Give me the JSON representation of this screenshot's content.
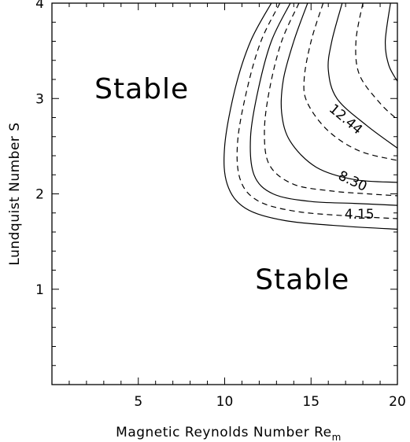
{
  "chart_data": {
    "type": "contour",
    "xlabel": "Magnetic Reynolds Number Re",
    "xlabel_subscript": "m",
    "ylabel": "Lundquist Number S",
    "xlim": [
      0,
      20
    ],
    "ylim": [
      0,
      4
    ],
    "x_ticks": [
      5,
      10,
      15,
      20
    ],
    "y_ticks": [
      1,
      2,
      3,
      4
    ],
    "x_minor_step": 1,
    "y_minor_step": 0.2,
    "grid": false,
    "region_labels": [
      {
        "text": "Stable",
        "x": 5.2,
        "y": 3.1
      },
      {
        "text": "Stable",
        "x": 14.5,
        "y": 1.1
      }
    ],
    "contour_labels": [
      {
        "text": "12.44",
        "x": 17.0,
        "y": 2.78,
        "angle": 40
      },
      {
        "text": "8.30",
        "x": 17.4,
        "y": 2.13,
        "angle": 25
      },
      {
        "text": "4.15",
        "x": 17.8,
        "y": 1.78,
        "angle": 0
      }
    ],
    "contours": [
      {
        "style": "solid",
        "points": [
          [
            12.7,
            4.0
          ],
          [
            11.5,
            3.6
          ],
          [
            10.6,
            3.1
          ],
          [
            10.0,
            2.5
          ],
          [
            10.15,
            2.1
          ],
          [
            11.2,
            1.85
          ],
          [
            13.5,
            1.72
          ],
          [
            17.0,
            1.66
          ],
          [
            20.0,
            1.63
          ]
        ]
      },
      {
        "style": "dashed",
        "points": [
          [
            13.2,
            4.0
          ],
          [
            12.1,
            3.6
          ],
          [
            11.3,
            3.1
          ],
          [
            10.75,
            2.55
          ],
          [
            10.9,
            2.15
          ],
          [
            11.9,
            1.93
          ],
          [
            14.0,
            1.82
          ],
          [
            17.0,
            1.77
          ],
          [
            20.0,
            1.74
          ]
        ]
      },
      {
        "style": "solid",
        "points": [
          [
            13.8,
            4.0
          ],
          [
            12.7,
            3.6
          ],
          [
            11.95,
            3.1
          ],
          [
            11.5,
            2.6
          ],
          [
            11.7,
            2.2
          ],
          [
            12.8,
            2.0
          ],
          [
            15.0,
            1.92
          ],
          [
            17.5,
            1.9
          ],
          [
            20.0,
            1.88
          ]
        ]
      },
      {
        "style": "dashed",
        "points": [
          [
            14.3,
            4.0
          ],
          [
            13.3,
            3.6
          ],
          [
            12.6,
            3.1
          ],
          [
            12.3,
            2.65
          ],
          [
            12.6,
            2.3
          ],
          [
            14.0,
            2.1
          ],
          [
            16.2,
            2.03
          ],
          [
            18.3,
            2.0
          ],
          [
            20.0,
            1.98
          ]
        ]
      },
      {
        "style": "solid",
        "points": [
          [
            14.8,
            4.0
          ],
          [
            14.0,
            3.6
          ],
          [
            13.4,
            3.2
          ],
          [
            13.3,
            2.85
          ],
          [
            13.8,
            2.55
          ],
          [
            15.3,
            2.28
          ],
          [
            17.5,
            2.15
          ],
          [
            20.0,
            2.12
          ]
        ]
      },
      {
        "style": "dashed",
        "points": [
          [
            15.7,
            4.0
          ],
          [
            15.0,
            3.6
          ],
          [
            14.6,
            3.2
          ],
          [
            14.8,
            2.95
          ],
          [
            16.0,
            2.66
          ],
          [
            17.8,
            2.45
          ],
          [
            20.0,
            2.35
          ]
        ]
      },
      {
        "style": "solid",
        "points": [
          [
            16.8,
            4.0
          ],
          [
            16.2,
            3.6
          ],
          [
            16.0,
            3.3
          ],
          [
            16.5,
            3.0
          ],
          [
            18.2,
            2.72
          ],
          [
            20.0,
            2.48
          ]
        ]
      },
      {
        "style": "dashed",
        "points": [
          [
            18.0,
            4.0
          ],
          [
            17.6,
            3.6
          ],
          [
            17.8,
            3.25
          ],
          [
            19.0,
            2.95
          ],
          [
            20.0,
            2.78
          ]
        ]
      },
      {
        "style": "solid",
        "points": [
          [
            19.6,
            4.0
          ],
          [
            19.3,
            3.6
          ],
          [
            19.5,
            3.35
          ],
          [
            20.0,
            3.18
          ]
        ]
      }
    ]
  }
}
